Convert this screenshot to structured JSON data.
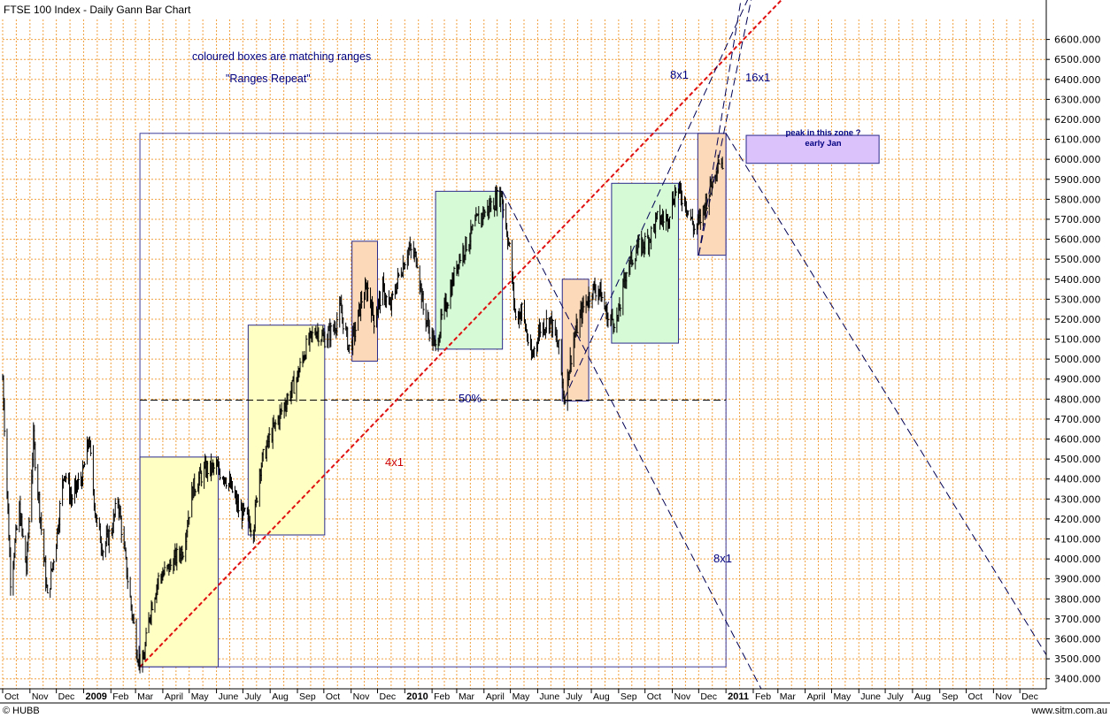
{
  "chart_data": {
    "type": "line",
    "title": "FTSE 100 Index - Daily Gann Bar Chart",
    "ylim": [
      3350,
      6700
    ],
    "yticks": [
      3400,
      3500,
      3600,
      3700,
      3800,
      3900,
      4000,
      4100,
      4200,
      4300,
      4400,
      4500,
      4600,
      4700,
      4800,
      4900,
      5000,
      5100,
      5200,
      5300,
      5400,
      5500,
      5600,
      5700,
      5800,
      5900,
      6000,
      6100,
      6200,
      6300,
      6400,
      6500,
      6600
    ],
    "ytick_labels": [
      "3400.000",
      "3500.000",
      "3600.000",
      "3700.000",
      "3800.000",
      "3900.000",
      "4000.000",
      "4100.000",
      "4200.000",
      "4300.000",
      "4400.000",
      "4500.000",
      "4600.000",
      "4700.000",
      "4800.000",
      "4900.000",
      "5000.000",
      "5100.000",
      "5200.000",
      "5300.000",
      "5400.000",
      "5500.000",
      "5600.000",
      "5700.000",
      "5800.000",
      "5900.000",
      "6000.000",
      "6100.000",
      "6200.000",
      "6300.000",
      "6400.000",
      "6500.000",
      "6600.000"
    ],
    "xaxis_start": "2008-10-01",
    "xaxis_end": "2011-12-31",
    "month_labels": [
      {
        "date": "2008-10-01",
        "label": "Oct"
      },
      {
        "date": "2008-11-01",
        "label": "Nov"
      },
      {
        "date": "2008-12-01",
        "label": "Dec"
      },
      {
        "date": "2009-01-01",
        "label": "2009",
        "year": true
      },
      {
        "date": "2009-02-01",
        "label": "Feb"
      },
      {
        "date": "2009-03-01",
        "label": "Mar"
      },
      {
        "date": "2009-04-01",
        "label": "April"
      },
      {
        "date": "2009-05-01",
        "label": "May"
      },
      {
        "date": "2009-06-01",
        "label": "June"
      },
      {
        "date": "2009-07-01",
        "label": "July"
      },
      {
        "date": "2009-08-01",
        "label": "Aug"
      },
      {
        "date": "2009-09-01",
        "label": "Sep"
      },
      {
        "date": "2009-10-01",
        "label": "Oct"
      },
      {
        "date": "2009-11-01",
        "label": "Nov"
      },
      {
        "date": "2009-12-01",
        "label": "Dec"
      },
      {
        "date": "2010-01-01",
        "label": "2010",
        "year": true
      },
      {
        "date": "2010-02-01",
        "label": "Feb"
      },
      {
        "date": "2010-03-01",
        "label": "Mar"
      },
      {
        "date": "2010-04-01",
        "label": "April"
      },
      {
        "date": "2010-05-01",
        "label": "May"
      },
      {
        "date": "2010-06-01",
        "label": "June"
      },
      {
        "date": "2010-07-01",
        "label": "July"
      },
      {
        "date": "2010-08-01",
        "label": "Aug"
      },
      {
        "date": "2010-09-01",
        "label": "Sep"
      },
      {
        "date": "2010-10-01",
        "label": "Oct"
      },
      {
        "date": "2010-11-01",
        "label": "Nov"
      },
      {
        "date": "2010-12-01",
        "label": "Dec"
      },
      {
        "date": "2011-01-01",
        "label": "2011",
        "year": true
      },
      {
        "date": "2011-02-01",
        "label": "Feb"
      },
      {
        "date": "2011-03-01",
        "label": "Mar"
      },
      {
        "date": "2011-04-01",
        "label": "April"
      },
      {
        "date": "2011-05-01",
        "label": "May"
      },
      {
        "date": "2011-06-01",
        "label": "June"
      },
      {
        "date": "2011-07-01",
        "label": "July"
      },
      {
        "date": "2011-08-01",
        "label": "Aug"
      },
      {
        "date": "2011-09-01",
        "label": "Sep"
      },
      {
        "date": "2011-10-01",
        "label": "Oct"
      },
      {
        "date": "2011-11-01",
        "label": "Nov"
      },
      {
        "date": "2011-12-01",
        "label": "Dec"
      }
    ],
    "series": [
      {
        "type": "ohlc_bars",
        "points": [
          [
            "2008-10-01",
            4900
          ],
          [
            "2008-10-10",
            3900
          ],
          [
            "2008-10-20",
            4250
          ],
          [
            "2008-10-28",
            3950
          ],
          [
            "2008-11-05",
            4600
          ],
          [
            "2008-11-12",
            4250
          ],
          [
            "2008-11-21",
            3800
          ],
          [
            "2008-12-01",
            4100
          ],
          [
            "2008-12-10",
            4450
          ],
          [
            "2008-12-18",
            4300
          ],
          [
            "2008-12-31",
            4420
          ],
          [
            "2009-01-07",
            4600
          ],
          [
            "2009-01-15",
            4200
          ],
          [
            "2009-01-23",
            4050
          ],
          [
            "2009-02-02",
            4150
          ],
          [
            "2009-02-09",
            4300
          ],
          [
            "2009-02-20",
            3900
          ],
          [
            "2009-03-03",
            3530
          ],
          [
            "2009-03-09",
            3460
          ],
          [
            "2009-03-18",
            3750
          ],
          [
            "2009-03-27",
            3900
          ],
          [
            "2009-04-07",
            3950
          ],
          [
            "2009-04-15",
            4000
          ],
          [
            "2009-04-24",
            4050
          ],
          [
            "2009-05-05",
            4350
          ],
          [
            "2009-05-12",
            4400
          ],
          [
            "2009-05-20",
            4450
          ],
          [
            "2009-06-01",
            4450
          ],
          [
            "2009-06-10",
            4420
          ],
          [
            "2009-06-18",
            4350
          ],
          [
            "2009-06-26",
            4250
          ],
          [
            "2009-07-06",
            4200
          ],
          [
            "2009-07-13",
            4150
          ],
          [
            "2009-07-20",
            4450
          ],
          [
            "2009-07-31",
            4600
          ],
          [
            "2009-08-10",
            4700
          ],
          [
            "2009-08-20",
            4800
          ],
          [
            "2009-08-31",
            4900
          ],
          [
            "2009-09-10",
            5050
          ],
          [
            "2009-09-22",
            5150
          ],
          [
            "2009-10-01",
            5100
          ],
          [
            "2009-10-12",
            5150
          ],
          [
            "2009-10-20",
            5250
          ],
          [
            "2009-10-30",
            5050
          ],
          [
            "2009-11-06",
            5150
          ],
          [
            "2009-11-13",
            5300
          ],
          [
            "2009-11-20",
            5350
          ],
          [
            "2009-11-27",
            5200
          ],
          [
            "2009-12-07",
            5350
          ],
          [
            "2009-12-15",
            5250
          ],
          [
            "2009-12-24",
            5400
          ],
          [
            "2010-01-05",
            5550
          ],
          [
            "2010-01-15",
            5500
          ],
          [
            "2010-01-22",
            5250
          ],
          [
            "2010-02-05",
            5050
          ],
          [
            "2010-02-12",
            5200
          ],
          [
            "2010-02-22",
            5350
          ],
          [
            "2010-03-03",
            5500
          ],
          [
            "2010-03-15",
            5600
          ],
          [
            "2010-03-25",
            5700
          ],
          [
            "2010-04-05",
            5750
          ],
          [
            "2010-04-15",
            5800
          ],
          [
            "2010-04-21",
            5830
          ],
          [
            "2010-04-30",
            5550
          ],
          [
            "2010-05-07",
            5200
          ],
          [
            "2010-05-14",
            5250
          ],
          [
            "2010-05-25",
            5000
          ],
          [
            "2010-06-03",
            5150
          ],
          [
            "2010-06-15",
            5200
          ],
          [
            "2010-06-25",
            5050
          ],
          [
            "2010-07-01",
            4800
          ],
          [
            "2010-07-12",
            5100
          ],
          [
            "2010-07-22",
            5250
          ],
          [
            "2010-08-02",
            5350
          ],
          [
            "2010-08-10",
            5350
          ],
          [
            "2010-08-20",
            5200
          ],
          [
            "2010-08-31",
            5200
          ],
          [
            "2010-09-10",
            5450
          ],
          [
            "2010-09-22",
            5550
          ],
          [
            "2010-10-05",
            5600
          ],
          [
            "2010-10-15",
            5700
          ],
          [
            "2010-10-26",
            5700
          ],
          [
            "2010-11-05",
            5850
          ],
          [
            "2010-11-15",
            5800
          ],
          [
            "2010-11-26",
            5650
          ],
          [
            "2010-12-03",
            5700
          ],
          [
            "2010-12-10",
            5800
          ],
          [
            "2010-12-17",
            5900
          ],
          [
            "2010-12-23",
            6000
          ],
          [
            "2010-12-29",
            5980
          ]
        ]
      }
    ],
    "boxes": [
      {
        "name": "yellow-box-1",
        "color": "yellow",
        "x0": "2009-03-06",
        "x1": "2009-06-03",
        "y0": 3460,
        "y1": 4510
      },
      {
        "name": "yellow-box-2",
        "color": "yellow",
        "x0": "2009-07-07",
        "x1": "2009-10-02",
        "y0": 4120,
        "y1": 5170
      },
      {
        "name": "orange-box-1",
        "color": "orange",
        "x0": "2009-11-02",
        "x1": "2009-12-01",
        "y0": 4990,
        "y1": 5590
      },
      {
        "name": "green-box-1",
        "color": "green",
        "x0": "2010-02-05",
        "x1": "2010-04-22",
        "y0": 5050,
        "y1": 5840
      },
      {
        "name": "orange-box-2",
        "color": "orange",
        "x0": "2010-06-29",
        "x1": "2010-07-29",
        "y0": 4790,
        "y1": 5400
      },
      {
        "name": "green-box-2",
        "color": "green",
        "x0": "2010-08-24",
        "x1": "2010-11-08",
        "y0": 5080,
        "y1": 5880
      },
      {
        "name": "orange-box-3",
        "color": "orange",
        "x0": "2010-11-30",
        "x1": "2011-01-01",
        "y0": 5520,
        "y1": 6130
      },
      {
        "name": "purple-box",
        "color": "purple",
        "x0": "2011-01-24",
        "x1": "2011-06-24",
        "y0": 5980,
        "y1": 6120
      }
    ],
    "frame": {
      "x0": "2009-03-06",
      "x1": "2011-01-01",
      "y0": 3460,
      "y1": 6130
    },
    "fifty_percent_level": 4795,
    "gann_lines": [
      {
        "name": "4x1-line",
        "x0": "2009-03-06",
        "y0": 3460,
        "x1": "2011-06-01",
        "y1": 7200
      },
      {
        "name": "8x1-up-line",
        "x0": "2010-07-01",
        "y0": 4800,
        "x1": "2011-01-31",
        "y1": 6850
      },
      {
        "name": "16x1-up-line",
        "x0": "2010-12-01",
        "y0": 5520,
        "x1": "2011-02-01",
        "y1": 6850
      },
      {
        "name": "16x1-up-line-2",
        "x0": "2010-12-01",
        "y0": 5520,
        "x1": "2011-01-20",
        "y1": 6850
      },
      {
        "name": "8x1-down-line",
        "x0": "2010-04-22",
        "y0": 5840,
        "x1": "2011-02-10",
        "y1": 3350
      },
      {
        "name": "peak-down-line",
        "x0": "2011-01-01",
        "y0": 6130,
        "x1": "2011-12-31",
        "y1": 3520
      }
    ],
    "annotations": {
      "boxes_note": "coloured boxes are matching ranges",
      "ranges_repeat": "\"Ranges Repeat\"",
      "label_8x1_top": "8x1",
      "label_16x1": "16x1",
      "label_4x1": "4x1",
      "label_50": "50%",
      "label_8x1_bottom": "8x1",
      "peak_line1": "peak in this zone ?",
      "peak_line2": "early Jan"
    },
    "footer_left": "© HUBB",
    "footer_right": "www.sitm.com.au"
  }
}
